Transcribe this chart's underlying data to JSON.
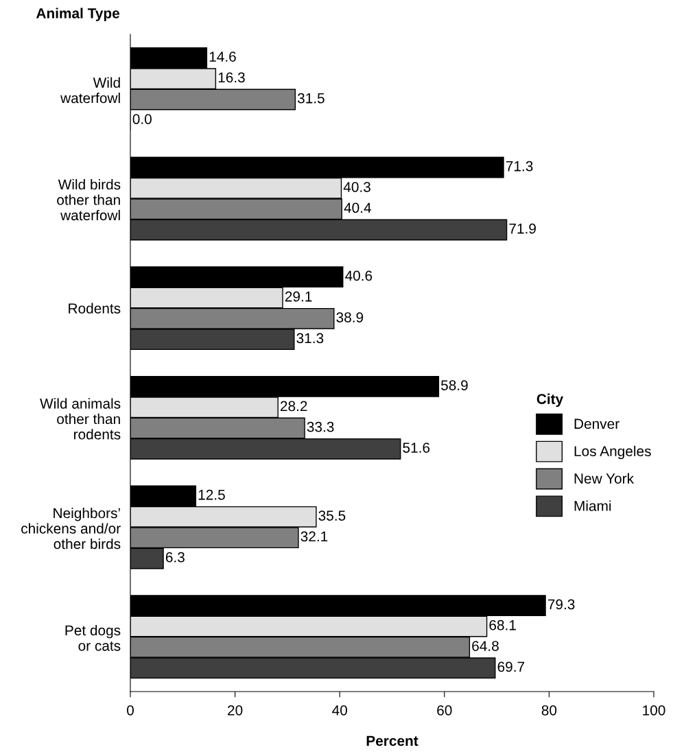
{
  "chart_data": {
    "type": "bar",
    "orientation": "horizontal",
    "xlabel": "Percent",
    "ylabel": "Animal Type",
    "legend_title": "City",
    "categories": [
      "Wild\nwaterfowl",
      "Wild birds\nother than\nwaterfowl",
      "Rodents",
      "Wild animals\nother than\nrodents",
      "Neighbors’\nchickens and/or\nother birds",
      "Pet dogs\nor cats"
    ],
    "series": [
      {
        "name": "Denver",
        "color": "#000000",
        "values": [
          14.6,
          71.3,
          40.6,
          58.9,
          12.5,
          79.3
        ],
        "value_labels": [
          "14.6",
          "71.3",
          "40.6",
          "58.9",
          "12.5",
          "79.3"
        ]
      },
      {
        "name": "Los Angeles",
        "color": "#e0e0e0",
        "values": [
          16.3,
          40.3,
          29.1,
          28.2,
          35.5,
          68.1
        ],
        "value_labels": [
          "16.3",
          "40.3",
          "29.1",
          "28.2",
          "35.5",
          "68.1"
        ]
      },
      {
        "name": "New York",
        "color": "#808080",
        "values": [
          31.5,
          40.4,
          38.9,
          33.3,
          32.1,
          64.8
        ],
        "value_labels": [
          "31.5",
          "40.4",
          "38.9",
          "33.3",
          "32.1",
          "64.8"
        ]
      },
      {
        "name": "Miami",
        "color": "#404040",
        "values": [
          0.0,
          71.9,
          31.3,
          51.6,
          6.3,
          69.7
        ],
        "value_labels": [
          "0.0",
          "71.9",
          "31.3",
          "51.6",
          "6.3",
          "69.7"
        ]
      }
    ],
    "xlim": [
      0,
      100
    ],
    "xticks": [
      0,
      20,
      40,
      60,
      80,
      100
    ],
    "grid": false,
    "legend": "right"
  }
}
